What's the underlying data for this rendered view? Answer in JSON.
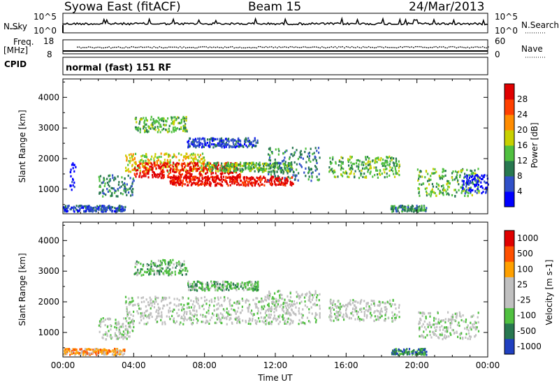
{
  "header": {
    "station": "Syowa East (fitACF)",
    "beam": "Beam 15",
    "date": "24/Mar/2013"
  },
  "strips": {
    "nsky_label": "N.Sky",
    "nsearch_label": "N.Search",
    "nsky_top": "10^5",
    "nsky_bottom": "10^0",
    "nsearch_top": "10^5",
    "nsearch_bottom": "10^0",
    "freq_label_1": "Freq.",
    "freq_label_2": "[MHz]",
    "freq_top": "18",
    "freq_bottom": "8",
    "nave_label": "Nave",
    "nave_top": "60",
    "nave_bottom": "0",
    "cpid_label": "CPID",
    "cpid_value": "normal (fast) 151 RF"
  },
  "chart_data": [
    {
      "type": "heatmap",
      "name": "power",
      "ylabel": "Slant Range [km]",
      "ylim": [
        200,
        4600
      ],
      "yticks": [
        1000,
        2000,
        3000,
        4000
      ],
      "xlim": [
        0,
        24
      ],
      "colorbar": {
        "label": "Power [dB]",
        "ticks": [
          "4",
          "8",
          "12",
          "16",
          "20",
          "24",
          "28"
        ],
        "colors": [
          "#0000ff",
          "#3050c8",
          "#287850",
          "#50c040",
          "#c8d000",
          "#ff8c00",
          "#ff4000",
          "#e00000"
        ]
      },
      "echo_regions": [
        {
          "t": [
            0.3,
            0.7
          ],
          "r": [
            1000,
            1900
          ],
          "level": 0
        },
        {
          "t": [
            0.0,
            3.5
          ],
          "r": [
            300,
            500
          ],
          "level": 1
        },
        {
          "t": [
            2.0,
            4.0
          ],
          "r": [
            800,
            1500
          ],
          "level": 2
        },
        {
          "t": [
            3.5,
            8.0
          ],
          "r": [
            1600,
            2200
          ],
          "level": 4
        },
        {
          "t": [
            4.0,
            10.0
          ],
          "r": [
            1400,
            1900
          ],
          "level": 7
        },
        {
          "t": [
            6.0,
            13.0
          ],
          "r": [
            1150,
            1450
          ],
          "level": 7
        },
        {
          "t": [
            8.0,
            13.0
          ],
          "r": [
            1600,
            1900
          ],
          "level": 3
        },
        {
          "t": [
            4.0,
            7.0
          ],
          "r": [
            2900,
            3400
          ],
          "level": 3
        },
        {
          "t": [
            7.0,
            11.0
          ],
          "r": [
            2400,
            2700
          ],
          "level": 1
        },
        {
          "t": [
            11.5,
            14.5
          ],
          "r": [
            1300,
            2400
          ],
          "level": 2
        },
        {
          "t": [
            15.0,
            19.0
          ],
          "r": [
            1400,
            2100
          ],
          "level": 3
        },
        {
          "t": [
            18.5,
            20.5
          ],
          "r": [
            300,
            500
          ],
          "level": 2
        },
        {
          "t": [
            20.0,
            23.5
          ],
          "r": [
            800,
            1700
          ],
          "level": 3
        },
        {
          "t": [
            22.5,
            24.0
          ],
          "r": [
            900,
            1500
          ],
          "level": 0
        }
      ]
    },
    {
      "type": "heatmap",
      "name": "velocity",
      "ylabel": "Slant Range [km]",
      "xlabel": "Time UT",
      "ylim": [
        200,
        4600
      ],
      "yticks": [
        1000,
        2000,
        3000,
        4000
      ],
      "xlim": [
        0,
        24
      ],
      "xticks": [
        "00:00",
        "04:00",
        "08:00",
        "12:00",
        "16:00",
        "20:00",
        "00:00"
      ],
      "colorbar": {
        "label": "Velocity [m s-1]",
        "ticks": [
          "1000",
          "500",
          "100",
          "25",
          "-25",
          "-100",
          "-500",
          "-1000"
        ],
        "colors": [
          "#2040c0",
          "#287850",
          "#50c040",
          "#c0c0c0",
          "#c0c0c0",
          "#ffa000",
          "#ff5000",
          "#e00000"
        ]
      },
      "echo_regions": [
        {
          "t": [
            0.0,
            3.5
          ],
          "r": [
            300,
            500
          ],
          "level": 5
        },
        {
          "t": [
            2.0,
            4.0
          ],
          "r": [
            800,
            1500
          ],
          "level": 3
        },
        {
          "t": [
            3.5,
            13.0
          ],
          "r": [
            1300,
            2200
          ],
          "level": 3
        },
        {
          "t": [
            4.0,
            7.0
          ],
          "r": [
            2900,
            3400
          ],
          "level": 2
        },
        {
          "t": [
            7.0,
            11.0
          ],
          "r": [
            2400,
            2700
          ],
          "level": 2
        },
        {
          "t": [
            11.5,
            14.5
          ],
          "r": [
            1300,
            2400
          ],
          "level": 3
        },
        {
          "t": [
            15.0,
            19.0
          ],
          "r": [
            1400,
            2100
          ],
          "level": 3
        },
        {
          "t": [
            18.5,
            20.5
          ],
          "r": [
            300,
            500
          ],
          "level": 1
        },
        {
          "t": [
            20.0,
            23.5
          ],
          "r": [
            800,
            1700
          ],
          "level": 3
        }
      ]
    }
  ]
}
